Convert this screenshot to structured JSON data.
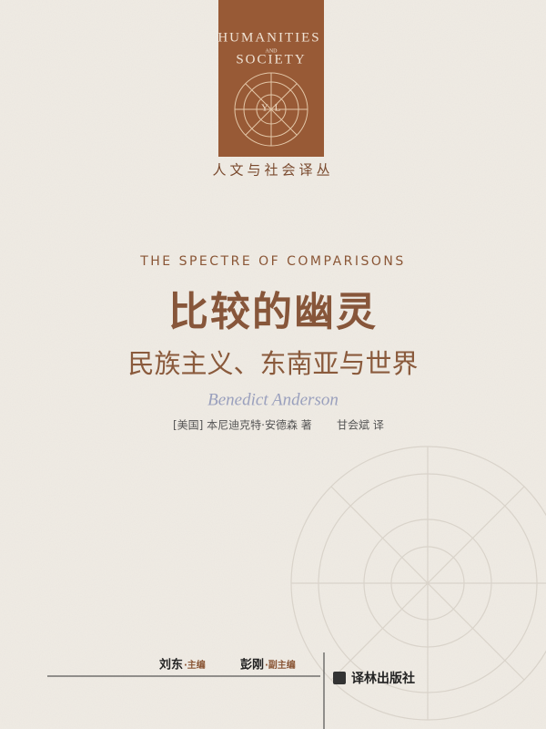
{
  "series": {
    "line1": "HUMANITIES",
    "and": "AND",
    "line2": "SOCIETY",
    "zh": "人文与社会译丛",
    "emblem": [
      "Y",
      "L"
    ]
  },
  "title_en": "THE SPECTRE OF COMPARISONS",
  "title_zh": "比较的幽灵",
  "subtitle": "民族主义、东南亚与世界",
  "author_en": "Benedict Anderson",
  "credit": {
    "author": "[美国] 本尼迪克特·安德森 著",
    "translator": "甘会斌 译"
  },
  "editors": [
    {
      "name": "刘东",
      "role": "·主编"
    },
    {
      "name": "彭刚",
      "role": "·副主编"
    }
  ],
  "publisher": "译林出版社"
}
